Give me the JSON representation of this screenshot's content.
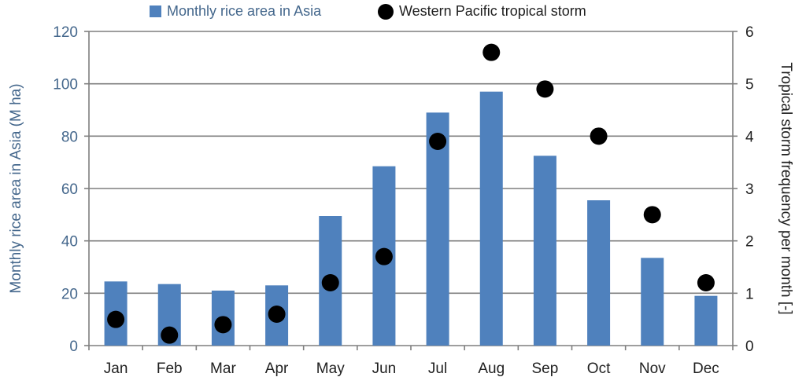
{
  "chart_data": {
    "type": "bar",
    "categories": [
      "Jan",
      "Feb",
      "Mar",
      "Apr",
      "May",
      "Jun",
      "Jul",
      "Aug",
      "Sep",
      "Oct",
      "Nov",
      "Dec"
    ],
    "series": [
      {
        "name": "Monthly rice area in Asia",
        "kind": "bar",
        "axis": "left",
        "color": "#4f81bd",
        "values": [
          24.5,
          23.5,
          21,
          23,
          49.5,
          68.5,
          89,
          97,
          72.5,
          55.5,
          33.5,
          19
        ]
      },
      {
        "name": "Western Pacific tropical storm",
        "kind": "scatter",
        "axis": "right",
        "color": "#000000",
        "values": [
          0.5,
          0.2,
          0.4,
          0.6,
          1.2,
          1.7,
          3.9,
          5.6,
          4.9,
          4.0,
          2.5,
          1.2
        ]
      }
    ],
    "ylabel": "Monthly rice area in Asia (M ha)",
    "y2label": "Tropical storm frequency per month [-]",
    "ylim": [
      0,
      120
    ],
    "yticks": [
      "0",
      "20",
      "40",
      "60",
      "80",
      "100",
      "120"
    ],
    "y2lim": [
      0,
      6
    ],
    "y2ticks": [
      "0",
      "1",
      "2",
      "3",
      "4",
      "5",
      "6"
    ],
    "grid": true,
    "legend_position": "top"
  }
}
